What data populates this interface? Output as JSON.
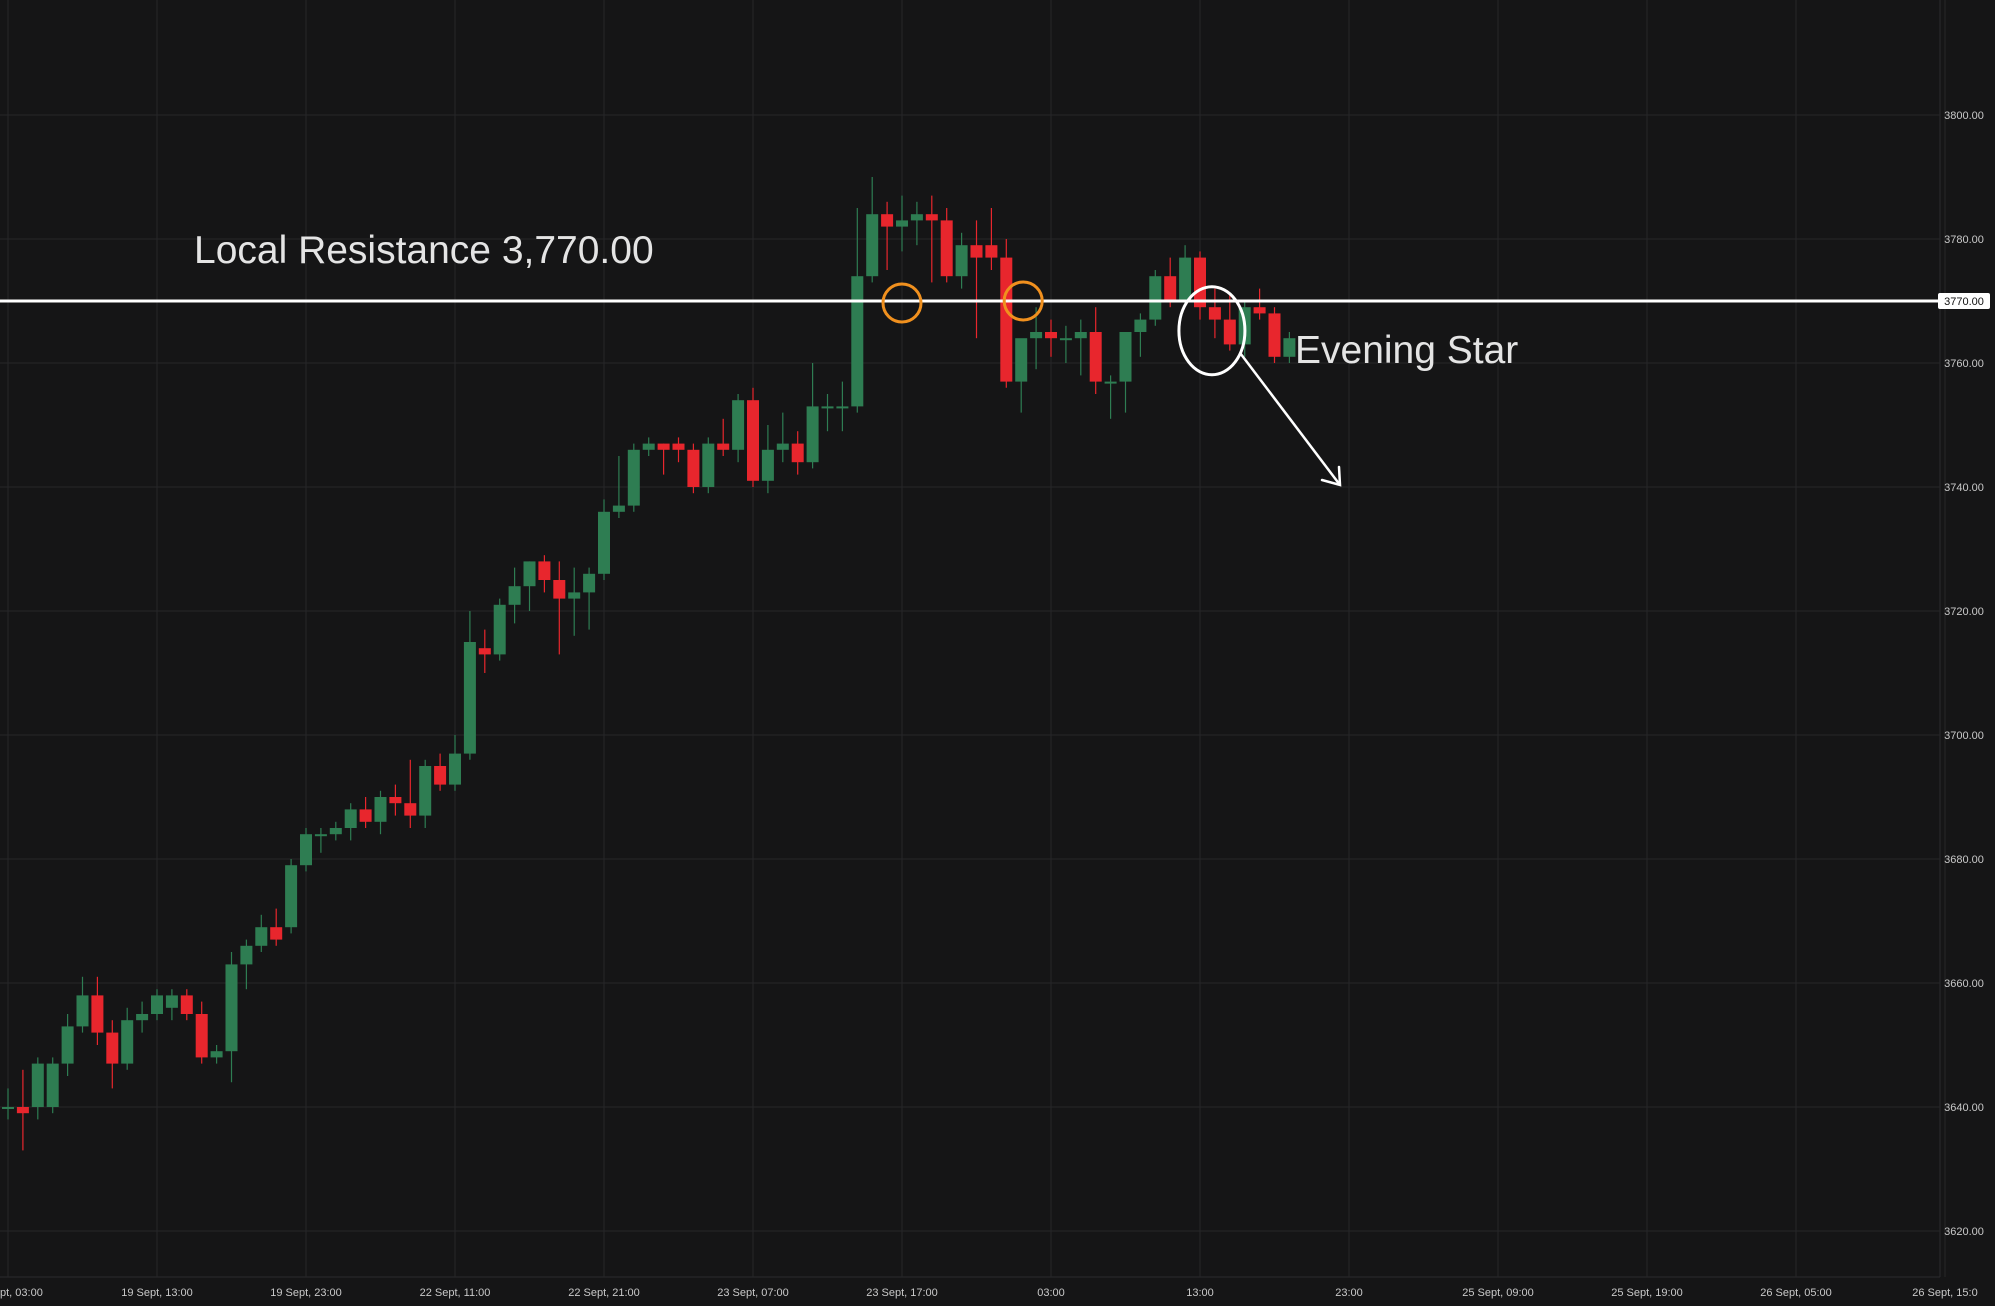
{
  "chart_data": {
    "type": "candlestick",
    "title": "",
    "xlabel": "",
    "ylabel": "",
    "ylim": [
      3610,
      3815
    ],
    "grid": true,
    "y_ticks": [
      "3800.00",
      "3780.00",
      "3760.00",
      "3740.00",
      "3720.00",
      "3700.00",
      "3680.00",
      "3660.00",
      "3640.00",
      "3620.00"
    ],
    "y_tick_values": [
      3800,
      3780,
      3760,
      3740,
      3720,
      3700,
      3680,
      3660,
      3640,
      3620
    ],
    "x_ticks": [
      {
        "label": "pt, 03:00",
        "index": 0
      },
      {
        "label": "19 Sept, 13:00",
        "index": 10
      },
      {
        "label": "19 Sept, 23:00",
        "index": 20
      },
      {
        "label": "22 Sept, 11:00",
        "index": 30
      },
      {
        "label": "22 Sept, 21:00",
        "index": 40
      },
      {
        "label": "23 Sept, 07:00",
        "index": 50
      },
      {
        "label": "23 Sept, 17:00",
        "index": 60
      },
      {
        "label": "03:00",
        "index": 70
      },
      {
        "label": "13:00",
        "index": 80
      },
      {
        "label": "23:00",
        "index": 90
      },
      {
        "label": "25 Sept, 09:00",
        "index": 100
      },
      {
        "label": "25 Sept, 19:00",
        "index": 110
      },
      {
        "label": "26 Sept, 05:00",
        "index": 120
      },
      {
        "label": "26 Sept, 15:0",
        "index": 130
      }
    ],
    "colors": {
      "up": "#2e7d52",
      "down": "#e8262d",
      "background": "#151516",
      "grid": "#262628",
      "line": "#ffffff",
      "marker": "#f0901e"
    },
    "candles": [
      {
        "o": 3640,
        "h": 3643,
        "l": 3638,
        "c": 3640
      },
      {
        "o": 3640,
        "h": 3646,
        "l": 3633,
        "c": 3639
      },
      {
        "o": 3640,
        "h": 3648,
        "l": 3638,
        "c": 3647
      },
      {
        "o": 3640,
        "h": 3648,
        "l": 3639,
        "c": 3647
      },
      {
        "o": 3647,
        "h": 3655,
        "l": 3645,
        "c": 3653
      },
      {
        "o": 3653,
        "h": 3661,
        "l": 3652,
        "c": 3658
      },
      {
        "o": 3658,
        "h": 3661,
        "l": 3650,
        "c": 3652
      },
      {
        "o": 3652,
        "h": 3654,
        "l": 3643,
        "c": 3647
      },
      {
        "o": 3647,
        "h": 3656,
        "l": 3646,
        "c": 3654
      },
      {
        "o": 3654,
        "h": 3657,
        "l": 3652,
        "c": 3655
      },
      {
        "o": 3655,
        "h": 3659,
        "l": 3654,
        "c": 3658
      },
      {
        "o": 3656,
        "h": 3659,
        "l": 3654,
        "c": 3658
      },
      {
        "o": 3658,
        "h": 3659,
        "l": 3654,
        "c": 3655
      },
      {
        "o": 3655,
        "h": 3657,
        "l": 3647,
        "c": 3648
      },
      {
        "o": 3648,
        "h": 3650,
        "l": 3647,
        "c": 3649
      },
      {
        "o": 3649,
        "h": 3665,
        "l": 3644,
        "c": 3663
      },
      {
        "o": 3663,
        "h": 3667,
        "l": 3659,
        "c": 3666
      },
      {
        "o": 3666,
        "h": 3671,
        "l": 3665,
        "c": 3669
      },
      {
        "o": 3669,
        "h": 3672,
        "l": 3666,
        "c": 3667
      },
      {
        "o": 3669,
        "h": 3680,
        "l": 3668,
        "c": 3679
      },
      {
        "o": 3679,
        "h": 3685,
        "l": 3678,
        "c": 3684
      },
      {
        "o": 3684,
        "h": 3685,
        "l": 3681,
        "c": 3684
      },
      {
        "o": 3684,
        "h": 3686,
        "l": 3683,
        "c": 3685
      },
      {
        "o": 3685,
        "h": 3689,
        "l": 3683,
        "c": 3688
      },
      {
        "o": 3688,
        "h": 3690,
        "l": 3685,
        "c": 3686
      },
      {
        "o": 3686,
        "h": 3691,
        "l": 3684,
        "c": 3690
      },
      {
        "o": 3690,
        "h": 3692,
        "l": 3687,
        "c": 3689
      },
      {
        "o": 3689,
        "h": 3696,
        "l": 3685,
        "c": 3687
      },
      {
        "o": 3687,
        "h": 3696,
        "l": 3685,
        "c": 3695
      },
      {
        "o": 3695,
        "h": 3697,
        "l": 3691,
        "c": 3692
      },
      {
        "o": 3692,
        "h": 3700,
        "l": 3691,
        "c": 3697
      },
      {
        "o": 3697,
        "h": 3720,
        "l": 3696,
        "c": 3715
      },
      {
        "o": 3714,
        "h": 3717,
        "l": 3710,
        "c": 3713
      },
      {
        "o": 3713,
        "h": 3722,
        "l": 3712,
        "c": 3721
      },
      {
        "o": 3721,
        "h": 3727,
        "l": 3718,
        "c": 3724
      },
      {
        "o": 3724,
        "h": 3728,
        "l": 3720,
        "c": 3728
      },
      {
        "o": 3728,
        "h": 3729,
        "l": 3723,
        "c": 3725
      },
      {
        "o": 3725,
        "h": 3728,
        "l": 3713,
        "c": 3722
      },
      {
        "o": 3722,
        "h": 3727,
        "l": 3716,
        "c": 3723
      },
      {
        "o": 3723,
        "h": 3727,
        "l": 3717,
        "c": 3726
      },
      {
        "o": 3726,
        "h": 3738,
        "l": 3725,
        "c": 3736
      },
      {
        "o": 3736,
        "h": 3745,
        "l": 3735,
        "c": 3737
      },
      {
        "o": 3737,
        "h": 3747,
        "l": 3736,
        "c": 3746
      },
      {
        "o": 3746,
        "h": 3748,
        "l": 3745,
        "c": 3747
      },
      {
        "o": 3747,
        "h": 3747,
        "l": 3742,
        "c": 3746
      },
      {
        "o": 3747,
        "h": 3748,
        "l": 3744,
        "c": 3746
      },
      {
        "o": 3746,
        "h": 3747,
        "l": 3739,
        "c": 3740
      },
      {
        "o": 3740,
        "h": 3748,
        "l": 3739,
        "c": 3747
      },
      {
        "o": 3747,
        "h": 3751,
        "l": 3745,
        "c": 3746
      },
      {
        "o": 3746,
        "h": 3755,
        "l": 3744,
        "c": 3754
      },
      {
        "o": 3754,
        "h": 3756,
        "l": 3740,
        "c": 3741
      },
      {
        "o": 3741,
        "h": 3750,
        "l": 3739,
        "c": 3746
      },
      {
        "o": 3746,
        "h": 3752,
        "l": 3744,
        "c": 3747
      },
      {
        "o": 3747,
        "h": 3749,
        "l": 3742,
        "c": 3744
      },
      {
        "o": 3744,
        "h": 3760,
        "l": 3743,
        "c": 3753
      },
      {
        "o": 3753,
        "h": 3755,
        "l": 3749,
        "c": 3753
      },
      {
        "o": 3753,
        "h": 3757,
        "l": 3749,
        "c": 3753
      },
      {
        "o": 3753,
        "h": 3785,
        "l": 3752,
        "c": 3774
      },
      {
        "o": 3774,
        "h": 3790,
        "l": 3773,
        "c": 3784
      },
      {
        "o": 3784,
        "h": 3786,
        "l": 3775,
        "c": 3782
      },
      {
        "o": 3782,
        "h": 3787,
        "l": 3778,
        "c": 3783
      },
      {
        "o": 3783,
        "h": 3786,
        "l": 3779,
        "c": 3784
      },
      {
        "o": 3784,
        "h": 3787,
        "l": 3773,
        "c": 3783
      },
      {
        "o": 3783,
        "h": 3785,
        "l": 3773,
        "c": 3774
      },
      {
        "o": 3774,
        "h": 3781,
        "l": 3772,
        "c": 3779
      },
      {
        "o": 3779,
        "h": 3783,
        "l": 3764,
        "c": 3777
      },
      {
        "o": 3779,
        "h": 3785,
        "l": 3775,
        "c": 3777
      },
      {
        "o": 3777,
        "h": 3780,
        "l": 3756,
        "c": 3757
      },
      {
        "o": 3757,
        "h": 3763,
        "l": 3752,
        "c": 3764
      },
      {
        "o": 3764,
        "h": 3769,
        "l": 3759,
        "c": 3765
      },
      {
        "o": 3765,
        "h": 3767,
        "l": 3761,
        "c": 3764
      },
      {
        "o": 3764,
        "h": 3766,
        "l": 3760,
        "c": 3764
      },
      {
        "o": 3764,
        "h": 3767,
        "l": 3758,
        "c": 3765
      },
      {
        "o": 3765,
        "h": 3769,
        "l": 3755,
        "c": 3757
      },
      {
        "o": 3757,
        "h": 3758,
        "l": 3751,
        "c": 3757
      },
      {
        "o": 3757,
        "h": 3765,
        "l": 3752,
        "c": 3765
      },
      {
        "o": 3765,
        "h": 3768,
        "l": 3761,
        "c": 3767
      },
      {
        "o": 3767,
        "h": 3775,
        "l": 3766,
        "c": 3774
      },
      {
        "o": 3774,
        "h": 3777,
        "l": 3769,
        "c": 3770
      },
      {
        "o": 3770,
        "h": 3779,
        "l": 3769,
        "c": 3777
      },
      {
        "o": 3777,
        "h": 3778,
        "l": 3767,
        "c": 3769
      },
      {
        "o": 3769,
        "h": 3772,
        "l": 3764,
        "c": 3767
      },
      {
        "o": 3767,
        "h": 3771,
        "l": 3762,
        "c": 3763
      },
      {
        "o": 3763,
        "h": 3770,
        "l": 3761,
        "c": 3769
      },
      {
        "o": 3769,
        "h": 3772,
        "l": 3767,
        "c": 3768
      },
      {
        "o": 3768,
        "h": 3769,
        "l": 3760,
        "c": 3761
      },
      {
        "o": 3761,
        "h": 3765,
        "l": 3760,
        "c": 3764
      }
    ],
    "resistance": {
      "value": 3770,
      "label": "Local Resistance 3,770.00",
      "price_tag": "3770.00"
    },
    "annotations": {
      "pattern_label": "Evening Star"
    }
  }
}
